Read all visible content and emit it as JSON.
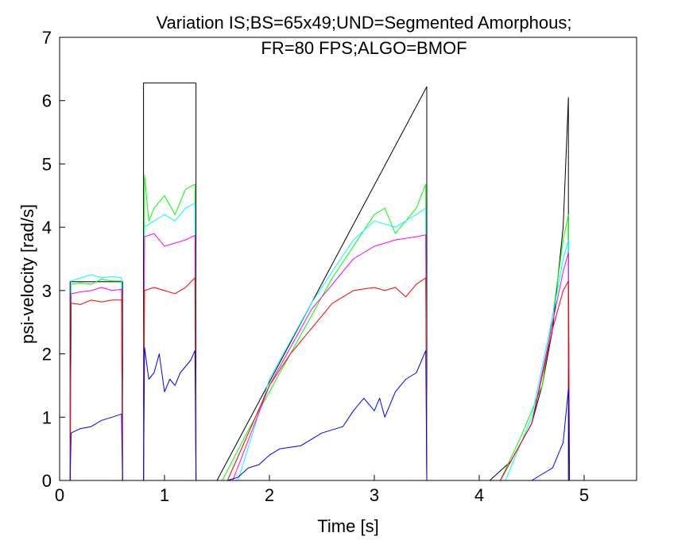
{
  "chart_data": {
    "type": "line",
    "title": [
      "Variation IS;BS=65x49;UND=Segmented Amorphous;",
      "FR=80 FPS;ALGO=BMOF"
    ],
    "xlabel": "Time [s]",
    "ylabel": "psi-velocity [rad/s]",
    "xlim": [
      0,
      5.5
    ],
    "ylim": [
      0,
      7
    ],
    "xticks": [
      0,
      1,
      2,
      3,
      4,
      5
    ],
    "yticks": [
      0,
      1,
      2,
      3,
      4,
      5,
      6,
      7
    ],
    "grid": false,
    "legend": "none",
    "series": [
      {
        "color": "#000000",
        "x": [
          0,
          0.1,
          0.1,
          0.6,
          0.6,
          0.8,
          0.8,
          1.3,
          1.3,
          1.5,
          3.5,
          3.5,
          4.1,
          4.3,
          4.5,
          4.6,
          4.7,
          4.8,
          4.85,
          4.85,
          5.5
        ],
        "y": [
          0,
          0,
          3.14,
          3.14,
          0,
          0,
          6.28,
          6.28,
          0,
          0,
          6.22,
          0,
          0,
          0.3,
          0.9,
          1.5,
          2.4,
          4.0,
          6.05,
          0,
          0
        ]
      },
      {
        "color": "#00ff00",
        "x": [
          0,
          0.1,
          0.11,
          0.2,
          0.3,
          0.4,
          0.5,
          0.59,
          0.6,
          0.8,
          0.81,
          0.85,
          0.9,
          1.0,
          1.1,
          1.2,
          1.29,
          1.3,
          1.55,
          1.8,
          2.0,
          2.2,
          2.4,
          2.6,
          2.8,
          3.0,
          3.1,
          3.2,
          3.3,
          3.4,
          3.49,
          3.5,
          4.2,
          4.4,
          4.6,
          4.7,
          4.8,
          4.85,
          4.86,
          5.5
        ],
        "y": [
          0,
          0,
          3.1,
          3.12,
          3.1,
          3.18,
          3.15,
          3.15,
          0,
          0,
          4.82,
          4.1,
          4.3,
          4.5,
          4.2,
          4.6,
          4.68,
          0,
          0,
          0.8,
          1.4,
          2.0,
          2.6,
          3.2,
          3.7,
          4.2,
          4.3,
          3.9,
          4.1,
          4.3,
          4.68,
          0,
          0,
          0.7,
          1.5,
          2.6,
          3.8,
          4.2,
          0,
          0
        ]
      },
      {
        "color": "#00ffff",
        "x": [
          0,
          0.1,
          0.11,
          0.2,
          0.3,
          0.4,
          0.5,
          0.59,
          0.6,
          0.8,
          0.81,
          0.9,
          1.0,
          1.1,
          1.2,
          1.29,
          1.3,
          1.7,
          2.0,
          2.2,
          2.4,
          2.6,
          2.8,
          3.0,
          3.2,
          3.4,
          3.49,
          3.5,
          4.25,
          4.5,
          4.7,
          4.8,
          4.85,
          4.86,
          5.5
        ],
        "y": [
          0,
          0,
          3.15,
          3.2,
          3.25,
          3.2,
          3.22,
          3.2,
          0,
          0,
          4.0,
          4.1,
          4.2,
          4.1,
          4.3,
          4.38,
          0,
          0,
          1.6,
          2.2,
          2.8,
          3.3,
          3.8,
          4.1,
          4.0,
          4.2,
          4.3,
          0,
          0,
          1.0,
          2.6,
          3.5,
          3.8,
          0,
          0
        ]
      },
      {
        "color": "#ff00ff",
        "x": [
          0,
          0.1,
          0.11,
          0.2,
          0.3,
          0.4,
          0.5,
          0.59,
          0.6,
          0.8,
          0.81,
          0.9,
          1.0,
          1.1,
          1.2,
          1.29,
          1.3,
          1.65,
          2.0,
          2.2,
          2.4,
          2.6,
          2.8,
          3.0,
          3.2,
          3.4,
          3.49,
          3.5,
          4.2,
          4.5,
          4.7,
          4.8,
          4.85,
          4.86,
          5.5
        ],
        "y": [
          0,
          0,
          2.95,
          2.98,
          3.0,
          3.05,
          3.0,
          3.02,
          0,
          0,
          3.85,
          3.9,
          3.7,
          3.75,
          3.8,
          3.87,
          0,
          0,
          1.5,
          2.1,
          2.7,
          3.1,
          3.5,
          3.7,
          3.8,
          3.85,
          3.88,
          0,
          0,
          0.9,
          2.5,
          3.3,
          3.6,
          0,
          0
        ]
      },
      {
        "color": "#ff0000",
        "x": [
          0,
          0.1,
          0.11,
          0.2,
          0.3,
          0.4,
          0.5,
          0.59,
          0.6,
          0.8,
          0.81,
          0.9,
          1.0,
          1.1,
          1.2,
          1.29,
          1.3,
          1.6,
          2.0,
          2.2,
          2.4,
          2.6,
          2.8,
          3.0,
          3.1,
          3.2,
          3.3,
          3.4,
          3.49,
          3.5,
          4.2,
          4.5,
          4.7,
          4.8,
          4.85,
          4.86,
          5.5
        ],
        "y": [
          0,
          0,
          2.8,
          2.78,
          2.85,
          2.82,
          2.85,
          2.85,
          0,
          0,
          3.0,
          3.05,
          3.0,
          2.95,
          3.05,
          3.2,
          0,
          0,
          1.5,
          2.0,
          2.4,
          2.8,
          3.0,
          3.05,
          3.0,
          3.05,
          2.9,
          3.1,
          3.2,
          0,
          0,
          0.9,
          2.4,
          3.0,
          3.15,
          0,
          0
        ]
      },
      {
        "color": "#0000ff",
        "x": [
          0,
          0.1,
          0.11,
          0.2,
          0.3,
          0.4,
          0.5,
          0.59,
          0.6,
          0.8,
          0.81,
          0.85,
          0.9,
          0.95,
          1.0,
          1.05,
          1.1,
          1.15,
          1.2,
          1.25,
          1.29,
          1.3,
          1.6,
          1.7,
          1.8,
          1.9,
          2.0,
          2.1,
          2.3,
          2.5,
          2.7,
          2.8,
          2.9,
          2.95,
          3.0,
          3.05,
          3.1,
          3.2,
          3.3,
          3.4,
          3.49,
          3.5,
          4.5,
          4.6,
          4.7,
          4.8,
          4.85,
          4.86,
          5.5
        ],
        "y": [
          0,
          0,
          0.75,
          0.82,
          0.85,
          0.95,
          1.0,
          1.05,
          0,
          0,
          2.1,
          1.6,
          1.7,
          2.0,
          1.4,
          1.6,
          1.5,
          1.7,
          1.8,
          1.9,
          2.05,
          0,
          0,
          0.05,
          0.2,
          0.25,
          0.4,
          0.5,
          0.55,
          0.75,
          0.85,
          1.1,
          1.3,
          1.2,
          1.1,
          1.3,
          1.0,
          1.4,
          1.6,
          1.7,
          2.05,
          0,
          0,
          0.1,
          0.2,
          0.6,
          1.45,
          0,
          0
        ]
      }
    ]
  }
}
